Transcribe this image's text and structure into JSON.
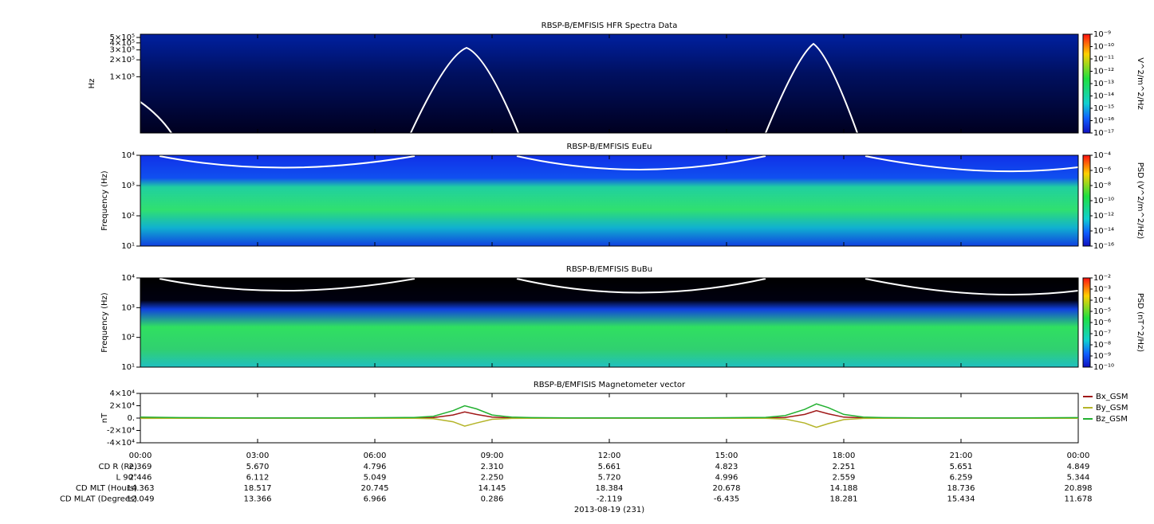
{
  "chart_data": [
    {
      "type": "spectrogram",
      "title": "RBSP-B/EMFISIS  HFR Spectra Data",
      "y_label": "Hz",
      "log_y": true,
      "ylim": [
        10000,
        570000
      ],
      "yticks": [
        {
          "value": 500000,
          "label": "5×10⁵"
        },
        {
          "value": 400000,
          "label": "4×10⁵"
        },
        {
          "value": 300000,
          "label": "3×10⁵"
        },
        {
          "value": 200000,
          "label": "2×10⁵"
        },
        {
          "value": 100000,
          "label": "1×10⁵"
        }
      ],
      "colorbar": {
        "label": "V^2/m^2/Hz",
        "log": true,
        "zlim": [
          1e-17,
          1e-09
        ],
        "zticks": [
          {
            "value": 1e-09,
            "label": "10⁻⁹"
          },
          {
            "value": 1e-10,
            "label": "10⁻¹⁰"
          },
          {
            "value": 1e-11,
            "label": "10⁻¹¹"
          },
          {
            "value": 1e-12,
            "label": "10⁻¹²"
          },
          {
            "value": 1e-13,
            "label": "10⁻¹³"
          },
          {
            "value": 1e-14,
            "label": "10⁻¹⁴"
          },
          {
            "value": 1e-15,
            "label": "10⁻¹⁵"
          },
          {
            "value": 1e-16,
            "label": "10⁻¹⁶"
          },
          {
            "value": 1e-17,
            "label": "10⁻¹⁷"
          }
        ]
      }
    },
    {
      "type": "spectrogram",
      "title": "RBSP-B/EMFISIS  EuEu",
      "y_label": "Frequency (Hz)",
      "log_y": true,
      "ylim": [
        10,
        10000
      ],
      "yticks": [
        {
          "value": 10,
          "label": "10¹"
        },
        {
          "value": 100,
          "label": "10²"
        },
        {
          "value": 1000,
          "label": "10³"
        },
        {
          "value": 10000,
          "label": "10⁴"
        }
      ],
      "colorbar": {
        "label": "PSD (V^2/m^2/Hz)",
        "log": true,
        "zlim": [
          1e-16,
          0.0001
        ],
        "zticks": [
          {
            "value": 0.0001,
            "label": "10⁻⁴"
          },
          {
            "value": 1e-06,
            "label": "10⁻⁶"
          },
          {
            "value": 1e-08,
            "label": "10⁻⁸"
          },
          {
            "value": 1e-10,
            "label": "10⁻¹⁰"
          },
          {
            "value": 1e-12,
            "label": "10⁻¹²"
          },
          {
            "value": 1e-14,
            "label": "10⁻¹⁴"
          },
          {
            "value": 1e-16,
            "label": "10⁻¹⁶"
          }
        ]
      }
    },
    {
      "type": "spectrogram",
      "title": "RBSP-B/EMFISIS  BuBu",
      "y_label": "Frequency (Hz)",
      "log_y": true,
      "ylim": [
        10,
        10000
      ],
      "yticks": [
        {
          "value": 10,
          "label": "10¹"
        },
        {
          "value": 100,
          "label": "10²"
        },
        {
          "value": 1000,
          "label": "10³"
        },
        {
          "value": 10000,
          "label": "10⁴"
        }
      ],
      "colorbar": {
        "label": "PSD (nT^2/Hz)",
        "log": true,
        "zlim": [
          1e-10,
          0.01
        ],
        "zticks": [
          {
            "value": 0.01,
            "label": "10⁻²"
          },
          {
            "value": 0.001,
            "label": "10⁻³"
          },
          {
            "value": 0.0001,
            "label": "10⁻⁴"
          },
          {
            "value": 1e-05,
            "label": "10⁻⁵"
          },
          {
            "value": 1e-06,
            "label": "10⁻⁶"
          },
          {
            "value": 1e-07,
            "label": "10⁻⁷"
          },
          {
            "value": 1e-08,
            "label": "10⁻⁸"
          },
          {
            "value": 1e-09,
            "label": "10⁻⁹"
          },
          {
            "value": 1e-10,
            "label": "10⁻¹⁰"
          }
        ]
      }
    },
    {
      "type": "line",
      "title": "RBSP-B/EMFISIS  Magnetometer vector",
      "y_label": "nT",
      "legend": "right",
      "ylim": [
        -40000,
        40000
      ],
      "yticks": [
        {
          "value": 40000,
          "label": "4×10⁴"
        },
        {
          "value": 20000,
          "label": "2×10⁴"
        },
        {
          "value": 0,
          "label": "0."
        },
        {
          "value": -20000,
          "label": "-2×10⁴"
        },
        {
          "value": -40000,
          "label": "-4×10⁴"
        }
      ],
      "x": [
        0,
        1,
        2,
        3,
        4,
        5,
        6,
        7,
        7.5,
        8,
        8.3,
        8.6,
        9,
        9.5,
        10,
        11,
        12,
        13,
        14,
        15,
        16,
        16.5,
        17,
        17.3,
        17.6,
        18,
        18.5,
        19,
        20,
        21,
        22,
        23,
        24
      ],
      "series": [
        {
          "name": "Bx_GSM",
          "color": "#a01818",
          "values": [
            500,
            200,
            100,
            0,
            0,
            0,
            100,
            200,
            800,
            5000,
            10000,
            6000,
            1500,
            300,
            100,
            0,
            0,
            0,
            0,
            100,
            300,
            1000,
            6000,
            12000,
            7000,
            1500,
            300,
            100,
            0,
            0,
            0,
            100,
            200
          ]
        },
        {
          "name": "By_GSM",
          "color": "#b4b428",
          "values": [
            -500,
            -300,
            -200,
            -100,
            -100,
            -100,
            -200,
            -300,
            -1000,
            -6000,
            -13000,
            -8000,
            -2000,
            -500,
            -200,
            -100,
            -100,
            -100,
            -100,
            -200,
            -400,
            -1500,
            -8000,
            -15000,
            -9000,
            -2500,
            -500,
            -200,
            -100,
            -100,
            -100,
            -200,
            -300
          ]
        },
        {
          "name": "Bz_GSM",
          "color": "#22b030",
          "values": [
            1500,
            800,
            500,
            300,
            300,
            400,
            600,
            1000,
            3000,
            12000,
            20000,
            15000,
            5000,
            1500,
            800,
            400,
            300,
            300,
            400,
            600,
            1200,
            4000,
            14000,
            23000,
            17000,
            6000,
            1500,
            800,
            400,
            300,
            300,
            500,
            800
          ]
        }
      ]
    }
  ],
  "time_axis": {
    "xlim": [
      0,
      24
    ],
    "xticks": [
      {
        "value": 0,
        "label": "00:00"
      },
      {
        "value": 3,
        "label": "03:00"
      },
      {
        "value": 6,
        "label": "06:00"
      },
      {
        "value": 9,
        "label": "09:00"
      },
      {
        "value": 12,
        "label": "12:00"
      },
      {
        "value": 15,
        "label": "15:00"
      },
      {
        "value": 18,
        "label": "18:00"
      },
      {
        "value": 21,
        "label": "21:00"
      },
      {
        "value": 24,
        "label": "00:00"
      }
    ],
    "date_label": "2013-08-19 (231)"
  },
  "ephemeris": {
    "rows": [
      {
        "label": "CD R (Re)",
        "values": [
          "2.369",
          "5.670",
          "4.796",
          "2.310",
          "5.661",
          "4.823",
          "2.251",
          "5.651",
          "4.849"
        ]
      },
      {
        "label": "L 90°",
        "values": [
          "2.446",
          "6.112",
          "5.049",
          "2.250",
          "5.720",
          "4.996",
          "2.559",
          "6.259",
          "5.344"
        ]
      },
      {
        "label": "CD MLT (Hours)",
        "values": [
          "14.363",
          "18.517",
          "20.745",
          "14.145",
          "18.384",
          "20.678",
          "14.188",
          "18.736",
          "20.898"
        ]
      },
      {
        "label": "CD MLAT (Degrees)",
        "values": [
          "12.049",
          "13.366",
          "6.966",
          "0.286",
          "-2.119",
          "-6.435",
          "18.281",
          "15.434",
          "11.678"
        ]
      }
    ]
  }
}
